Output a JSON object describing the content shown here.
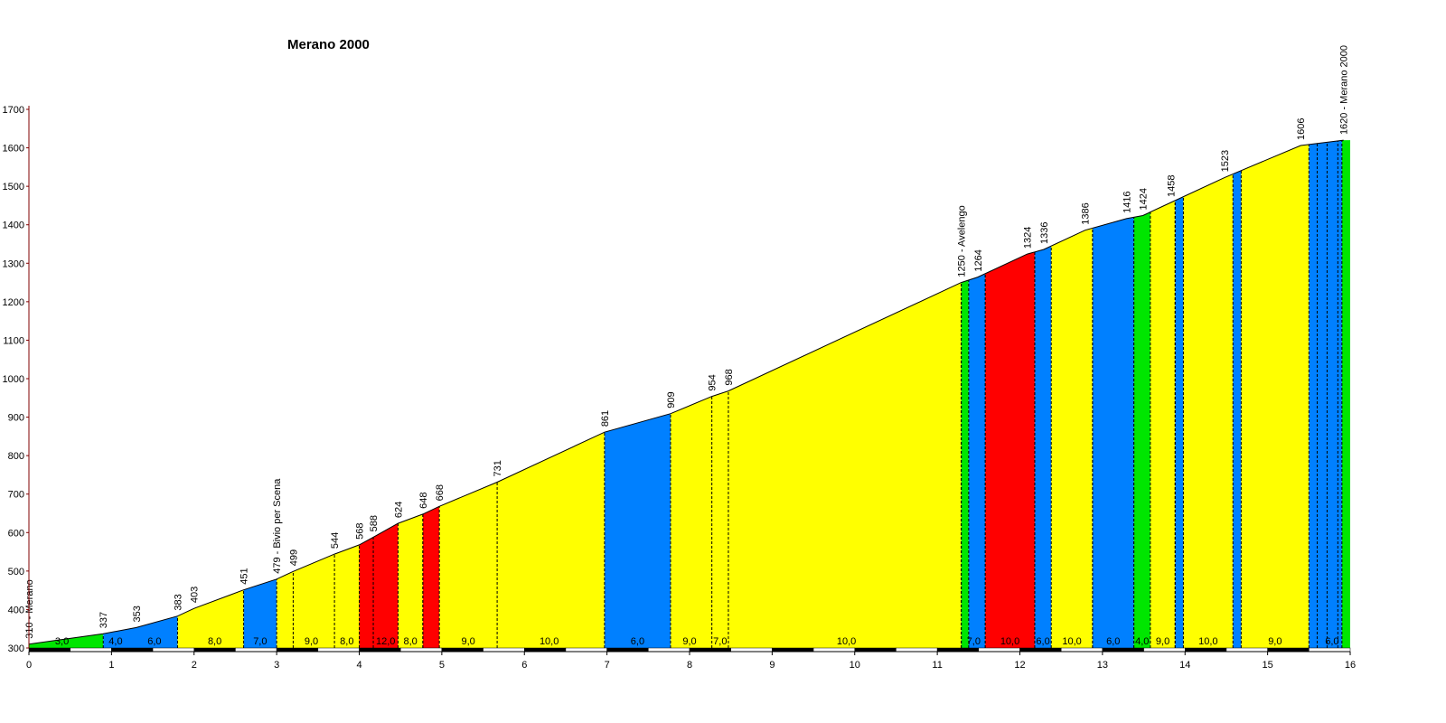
{
  "chart_data": {
    "type": "area",
    "title": "Merano 2000",
    "xlim": [
      0,
      16
    ],
    "ylim": [
      300,
      1700
    ],
    "x_ticks": [
      0,
      1,
      2,
      3,
      4,
      5,
      6,
      7,
      8,
      9,
      10,
      11,
      12,
      13,
      14,
      15,
      16
    ],
    "y_ticks": [
      300,
      400,
      500,
      600,
      700,
      800,
      900,
      1000,
      1100,
      1200,
      1300,
      1400,
      1500,
      1600,
      1700
    ],
    "profile_points": [
      {
        "x": 0.0,
        "y": 310,
        "label": "310 - Merano"
      },
      {
        "x": 0.9,
        "y": 337,
        "label": "337"
      },
      {
        "x": 1.3,
        "y": 353,
        "label": "353"
      },
      {
        "x": 1.8,
        "y": 383,
        "label": "383"
      },
      {
        "x": 2.0,
        "y": 403,
        "label": "403"
      },
      {
        "x": 2.6,
        "y": 451,
        "label": "451"
      },
      {
        "x": 3.0,
        "y": 479,
        "label": "479 - Bivio per Scena"
      },
      {
        "x": 3.2,
        "y": 499,
        "label": "499"
      },
      {
        "x": 3.7,
        "y": 544,
        "label": "544"
      },
      {
        "x": 4.0,
        "y": 568,
        "label": "568"
      },
      {
        "x": 4.17,
        "y": 588,
        "label": "588"
      },
      {
        "x": 4.47,
        "y": 624,
        "label": "624"
      },
      {
        "x": 4.77,
        "y": 648,
        "label": "648"
      },
      {
        "x": 4.97,
        "y": 668,
        "label": "668"
      },
      {
        "x": 5.67,
        "y": 731,
        "label": "731"
      },
      {
        "x": 6.97,
        "y": 861,
        "label": "861"
      },
      {
        "x": 7.77,
        "y": 909,
        "label": "909"
      },
      {
        "x": 8.27,
        "y": 954,
        "label": "954"
      },
      {
        "x": 8.47,
        "y": 968,
        "label": "968"
      },
      {
        "x": 11.29,
        "y": 1250,
        "label": "1250 - Avelengo"
      },
      {
        "x": 11.49,
        "y": 1264,
        "label": "1264"
      },
      {
        "x": 12.09,
        "y": 1324,
        "label": "1324"
      },
      {
        "x": 12.29,
        "y": 1336,
        "label": "1336"
      },
      {
        "x": 12.79,
        "y": 1386,
        "label": "1386"
      },
      {
        "x": 13.29,
        "y": 1416,
        "label": "1416"
      },
      {
        "x": 13.49,
        "y": 1424,
        "label": "1424"
      },
      {
        "x": 13.83,
        "y": 1458,
        "label": "1458"
      },
      {
        "x": 14.48,
        "y": 1523,
        "label": "1523"
      },
      {
        "x": 15.4,
        "y": 1606,
        "label": "1606"
      },
      {
        "x": 15.92,
        "y": 1620,
        "label": "1620 - Merano 2000"
      }
    ],
    "colored_segments": [
      {
        "from": 0.0,
        "to": 0.9,
        "color": "#00e600"
      },
      {
        "from": 0.9,
        "to": 1.8,
        "color": "#0080ff"
      },
      {
        "from": 1.8,
        "to": 2.6,
        "color": "#ffff00"
      },
      {
        "from": 2.6,
        "to": 3.0,
        "color": "#0080ff"
      },
      {
        "from": 3.0,
        "to": 4.0,
        "color": "#ffff00"
      },
      {
        "from": 4.0,
        "to": 4.47,
        "color": "#ff0000"
      },
      {
        "from": 4.47,
        "to": 4.77,
        "color": "#ffff00"
      },
      {
        "from": 4.77,
        "to": 4.97,
        "color": "#ff0000"
      },
      {
        "from": 4.97,
        "to": 6.97,
        "color": "#ffff00"
      },
      {
        "from": 6.97,
        "to": 7.77,
        "color": "#0080ff"
      },
      {
        "from": 7.77,
        "to": 11.29,
        "color": "#ffff00"
      },
      {
        "from": 11.29,
        "to": 11.38,
        "color": "#00e600"
      },
      {
        "from": 11.38,
        "to": 11.58,
        "color": "#0080ff"
      },
      {
        "from": 11.58,
        "to": 12.18,
        "color": "#ff0000"
      },
      {
        "from": 12.18,
        "to": 12.38,
        "color": "#0080ff"
      },
      {
        "from": 12.38,
        "to": 12.88,
        "color": "#ffff00"
      },
      {
        "from": 12.88,
        "to": 13.38,
        "color": "#0080ff"
      },
      {
        "from": 13.38,
        "to": 13.58,
        "color": "#00e600"
      },
      {
        "from": 13.58,
        "to": 13.88,
        "color": "#ffff00"
      },
      {
        "from": 13.88,
        "to": 13.98,
        "color": "#0080ff"
      },
      {
        "from": 13.98,
        "to": 14.58,
        "color": "#ffff00"
      },
      {
        "from": 14.58,
        "to": 14.68,
        "color": "#0080ff"
      },
      {
        "from": 14.68,
        "to": 15.5,
        "color": "#ffff00"
      },
      {
        "from": 15.5,
        "to": 15.9,
        "color": "#0080ff"
      },
      {
        "from": 15.9,
        "to": 16.0,
        "color": "#00e600"
      }
    ],
    "section_dividers": [
      3.2,
      3.7,
      4.17,
      4.77,
      5.67,
      8.27,
      8.47,
      11.29,
      11.58,
      12.18,
      12.88,
      13.38,
      13.88,
      15.6,
      15.72,
      15.85
    ],
    "gradient_labels": [
      {
        "x": 0.4,
        "text": "3,0"
      },
      {
        "x": 1.05,
        "text": "4,0"
      },
      {
        "x": 1.52,
        "text": "6,0"
      },
      {
        "x": 2.25,
        "text": "8,0"
      },
      {
        "x": 2.8,
        "text": "7,0"
      },
      {
        "x": 3.42,
        "text": "9,0"
      },
      {
        "x": 3.85,
        "text": "8,0"
      },
      {
        "x": 4.32,
        "text": "12,0"
      },
      {
        "x": 4.62,
        "text": "8,0"
      },
      {
        "x": 5.32,
        "text": "9,0"
      },
      {
        "x": 6.3,
        "text": "10,0"
      },
      {
        "x": 7.37,
        "text": "6,0"
      },
      {
        "x": 8.0,
        "text": "9,0"
      },
      {
        "x": 8.37,
        "text": "7,0"
      },
      {
        "x": 9.9,
        "text": "10,0"
      },
      {
        "x": 11.44,
        "text": "7,0"
      },
      {
        "x": 11.88,
        "text": "10,0"
      },
      {
        "x": 12.28,
        "text": "6,0"
      },
      {
        "x": 12.63,
        "text": "10,0"
      },
      {
        "x": 13.13,
        "text": "6,0"
      },
      {
        "x": 13.48,
        "text": "4,0"
      },
      {
        "x": 13.73,
        "text": "9,0"
      },
      {
        "x": 14.28,
        "text": "10,0"
      },
      {
        "x": 15.09,
        "text": "9,0"
      },
      {
        "x": 15.78,
        "text": "6,0"
      }
    ],
    "colors": {
      "grade_low": "#00e600",
      "grade_mid": "#0080ff",
      "grade_high": "#ffff00",
      "grade_steep": "#ff0000",
      "axis": "#800000"
    }
  }
}
